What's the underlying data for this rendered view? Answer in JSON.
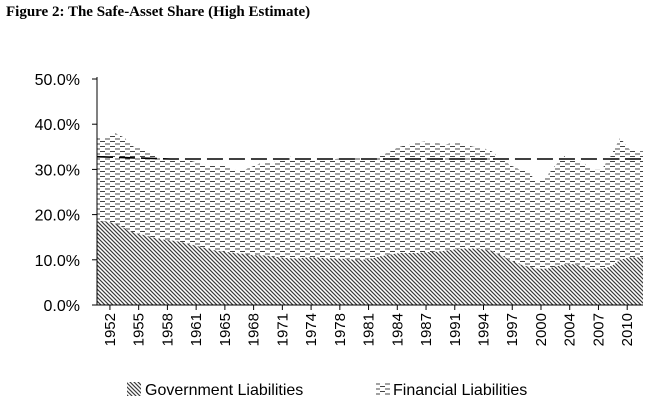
{
  "chart_data": {
    "type": "area",
    "title": "Figure 2:  The Safe-Asset Share (High Estimate)",
    "xlabel": "",
    "ylabel": "",
    "ylim": [
      0,
      50
    ],
    "y_ticks": [
      "0.0%",
      "10.0%",
      "20.0%",
      "30.0%",
      "40.0%",
      "50.0%"
    ],
    "x_ticks": [
      "1952",
      "1955",
      "1958",
      "1961",
      "1965",
      "1968",
      "1971",
      "1974",
      "1978",
      "1981",
      "1984",
      "1987",
      "1991",
      "1994",
      "1997",
      "2000",
      "2004",
      "2007",
      "2010"
    ],
    "x_range": [
      1952.0,
      2011.5
    ],
    "stacked": true,
    "grid": false,
    "legend": "bottom",
    "series": [
      {
        "name": "Government Liabilities",
        "pattern": "diagonal-hatch",
        "color": "#555555",
        "points": [
          [
            1952.0,
            18.5
          ],
          [
            1953.0,
            18.5
          ],
          [
            1954.0,
            18.0
          ],
          [
            1955.0,
            17.0
          ],
          [
            1956.0,
            16.0
          ],
          [
            1957.0,
            15.5
          ],
          [
            1958.0,
            15.0
          ],
          [
            1959.0,
            14.5
          ],
          [
            1960.0,
            14.3
          ],
          [
            1961.0,
            14.0
          ],
          [
            1962.0,
            13.5
          ],
          [
            1963.0,
            13.0
          ],
          [
            1964.0,
            12.5
          ],
          [
            1965.0,
            12.0
          ],
          [
            1966.0,
            11.8
          ],
          [
            1967.0,
            11.5
          ],
          [
            1968.0,
            11.3
          ],
          [
            1969.0,
            11.0
          ],
          [
            1970.0,
            11.0
          ],
          [
            1971.0,
            10.8
          ],
          [
            1972.0,
            10.5
          ],
          [
            1973.0,
            10.3
          ],
          [
            1974.0,
            10.3
          ],
          [
            1975.0,
            10.5
          ],
          [
            1976.0,
            10.5
          ],
          [
            1977.0,
            10.3
          ],
          [
            1978.0,
            10.3
          ],
          [
            1979.0,
            10.2
          ],
          [
            1980.0,
            10.0
          ],
          [
            1981.0,
            10.0
          ],
          [
            1982.0,
            10.3
          ],
          [
            1983.0,
            10.8
          ],
          [
            1984.0,
            11.2
          ],
          [
            1985.0,
            11.5
          ],
          [
            1986.0,
            11.5
          ],
          [
            1987.0,
            11.5
          ],
          [
            1988.0,
            11.7
          ],
          [
            1989.0,
            11.8
          ],
          [
            1990.0,
            12.0
          ],
          [
            1991.0,
            12.3
          ],
          [
            1992.0,
            12.5
          ],
          [
            1993.0,
            12.5
          ],
          [
            1994.0,
            12.3
          ],
          [
            1995.0,
            12.0
          ],
          [
            1996.0,
            11.0
          ],
          [
            1997.0,
            10.0
          ],
          [
            1998.0,
            9.0
          ],
          [
            1999.0,
            8.5
          ],
          [
            2000.0,
            8.0
          ],
          [
            2001.0,
            8.0
          ],
          [
            2002.0,
            8.5
          ],
          [
            2003.0,
            9.0
          ],
          [
            2004.0,
            9.0
          ],
          [
            2005.0,
            8.5
          ],
          [
            2006.0,
            8.0
          ],
          [
            2007.0,
            8.0
          ],
          [
            2008.0,
            8.5
          ],
          [
            2009.0,
            10.0
          ],
          [
            2010.0,
            10.5
          ],
          [
            2011.0,
            10.5
          ],
          [
            2011.5,
            10.5
          ]
        ]
      },
      {
        "name": "Financial Liabilities",
        "pattern": "dashed-hatch",
        "color": "#333333",
        "points": [
          [
            1952.0,
            18.5
          ],
          [
            1953.0,
            18.5
          ],
          [
            1954.0,
            20.0
          ],
          [
            1955.0,
            20.0
          ],
          [
            1956.0,
            19.0
          ],
          [
            1957.0,
            19.0
          ],
          [
            1958.0,
            18.5
          ],
          [
            1959.0,
            18.0
          ],
          [
            1960.0,
            18.0
          ],
          [
            1961.0,
            18.0
          ],
          [
            1962.0,
            18.5
          ],
          [
            1963.0,
            18.5
          ],
          [
            1964.0,
            18.5
          ],
          [
            1965.0,
            19.0
          ],
          [
            1966.0,
            19.0
          ],
          [
            1967.0,
            18.5
          ],
          [
            1968.0,
            18.5
          ],
          [
            1969.0,
            19.7
          ],
          [
            1970.0,
            20.5
          ],
          [
            1971.0,
            20.7
          ],
          [
            1972.0,
            21.5
          ],
          [
            1973.0,
            22.5
          ],
          [
            1974.0,
            22.2
          ],
          [
            1975.0,
            22.0
          ],
          [
            1976.0,
            21.5
          ],
          [
            1977.0,
            21.7
          ],
          [
            1978.0,
            22.0
          ],
          [
            1979.0,
            22.3
          ],
          [
            1980.0,
            22.5
          ],
          [
            1981.0,
            22.5
          ],
          [
            1982.0,
            22.2
          ],
          [
            1983.0,
            22.2
          ],
          [
            1984.0,
            22.8
          ],
          [
            1985.0,
            23.5
          ],
          [
            1986.0,
            24.0
          ],
          [
            1987.0,
            24.5
          ],
          [
            1988.0,
            24.5
          ],
          [
            1989.0,
            24.0
          ],
          [
            1990.0,
            23.5
          ],
          [
            1991.0,
            23.7
          ],
          [
            1992.0,
            23.0
          ],
          [
            1993.0,
            22.5
          ],
          [
            1994.0,
            22.5
          ],
          [
            1995.0,
            22.0
          ],
          [
            1996.0,
            21.5
          ],
          [
            1997.0,
            21.0
          ],
          [
            1998.0,
            21.0
          ],
          [
            1999.0,
            21.0
          ],
          [
            2000.0,
            19.0
          ],
          [
            2001.0,
            20.5
          ],
          [
            2002.0,
            22.5
          ],
          [
            2003.0,
            24.0
          ],
          [
            2004.0,
            23.0
          ],
          [
            2005.0,
            23.0
          ],
          [
            2006.0,
            22.0
          ],
          [
            2007.0,
            22.0
          ],
          [
            2008.0,
            24.5
          ],
          [
            2009.0,
            27.0
          ],
          [
            2010.0,
            24.0
          ],
          [
            2011.0,
            23.5
          ],
          [
            2011.5,
            23.5
          ]
        ]
      }
    ],
    "reference_line": {
      "style": "long-dash",
      "points": [
        [
          1952.0,
          32.8
        ],
        [
          1960.0,
          32.3
        ],
        [
          2011.5,
          32.3
        ]
      ]
    }
  }
}
